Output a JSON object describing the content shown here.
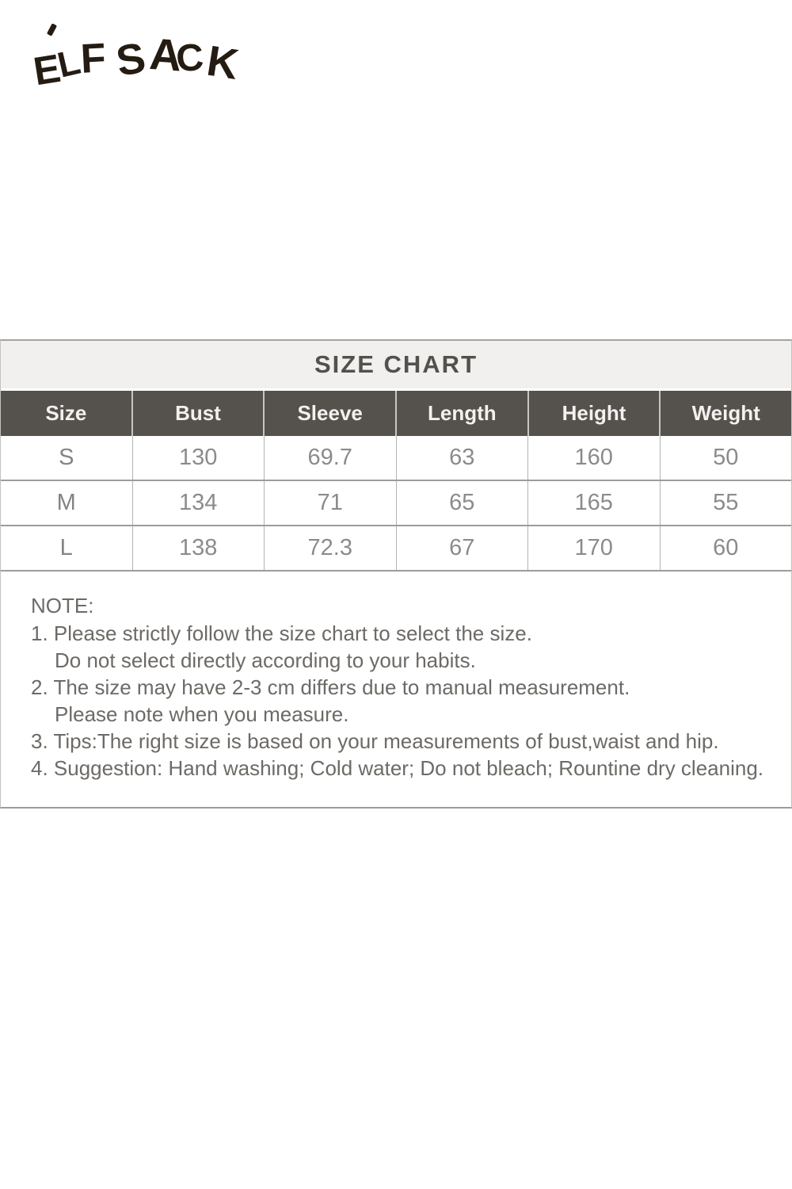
{
  "logo": {
    "brand": "ELF SACK",
    "letters": [
      "E",
      "L",
      "F",
      "S",
      "A",
      "C",
      "K"
    ]
  },
  "size_chart": {
    "title": "SIZE CHART",
    "columns": [
      "Size",
      "Bust",
      "Sleeve",
      "Length",
      "Height",
      "Weight"
    ],
    "rows": [
      [
        "S",
        "130",
        "69.7",
        "63",
        "160",
        "50"
      ],
      [
        "M",
        "134",
        "71",
        "65",
        "165",
        "55"
      ],
      [
        "L",
        "138",
        "72.3",
        "67",
        "170",
        "60"
      ]
    ]
  },
  "note": {
    "heading": "NOTE:",
    "lines": [
      {
        "text": "1. Please strictly follow the size chart to select the size.",
        "indent": false
      },
      {
        "text": "Do not select directly according to your habits.",
        "indent": true
      },
      {
        "text": "2. The size may have 2-3 cm differs due to manual measurement.",
        "indent": false
      },
      {
        "text": "Please note when you measure.",
        "indent": true
      },
      {
        "text": "3. Tips:The right size is based on your measurements of bust,waist and hip.",
        "indent": false
      },
      {
        "text": "4. Suggestion: Hand washing; Cold water; Do not bleach; Rountine dry cleaning.",
        "indent": false
      }
    ]
  },
  "colors": {
    "header_row_bg": "#55514c",
    "header_row_text": "#f2f1ef",
    "title_band_bg": "#f1f0ee",
    "title_text": "#54514d",
    "body_text": "#8b8b8b",
    "note_text": "#6d6a66",
    "divider_line": "#9c9c9c",
    "logo_ink": "#241b12"
  }
}
